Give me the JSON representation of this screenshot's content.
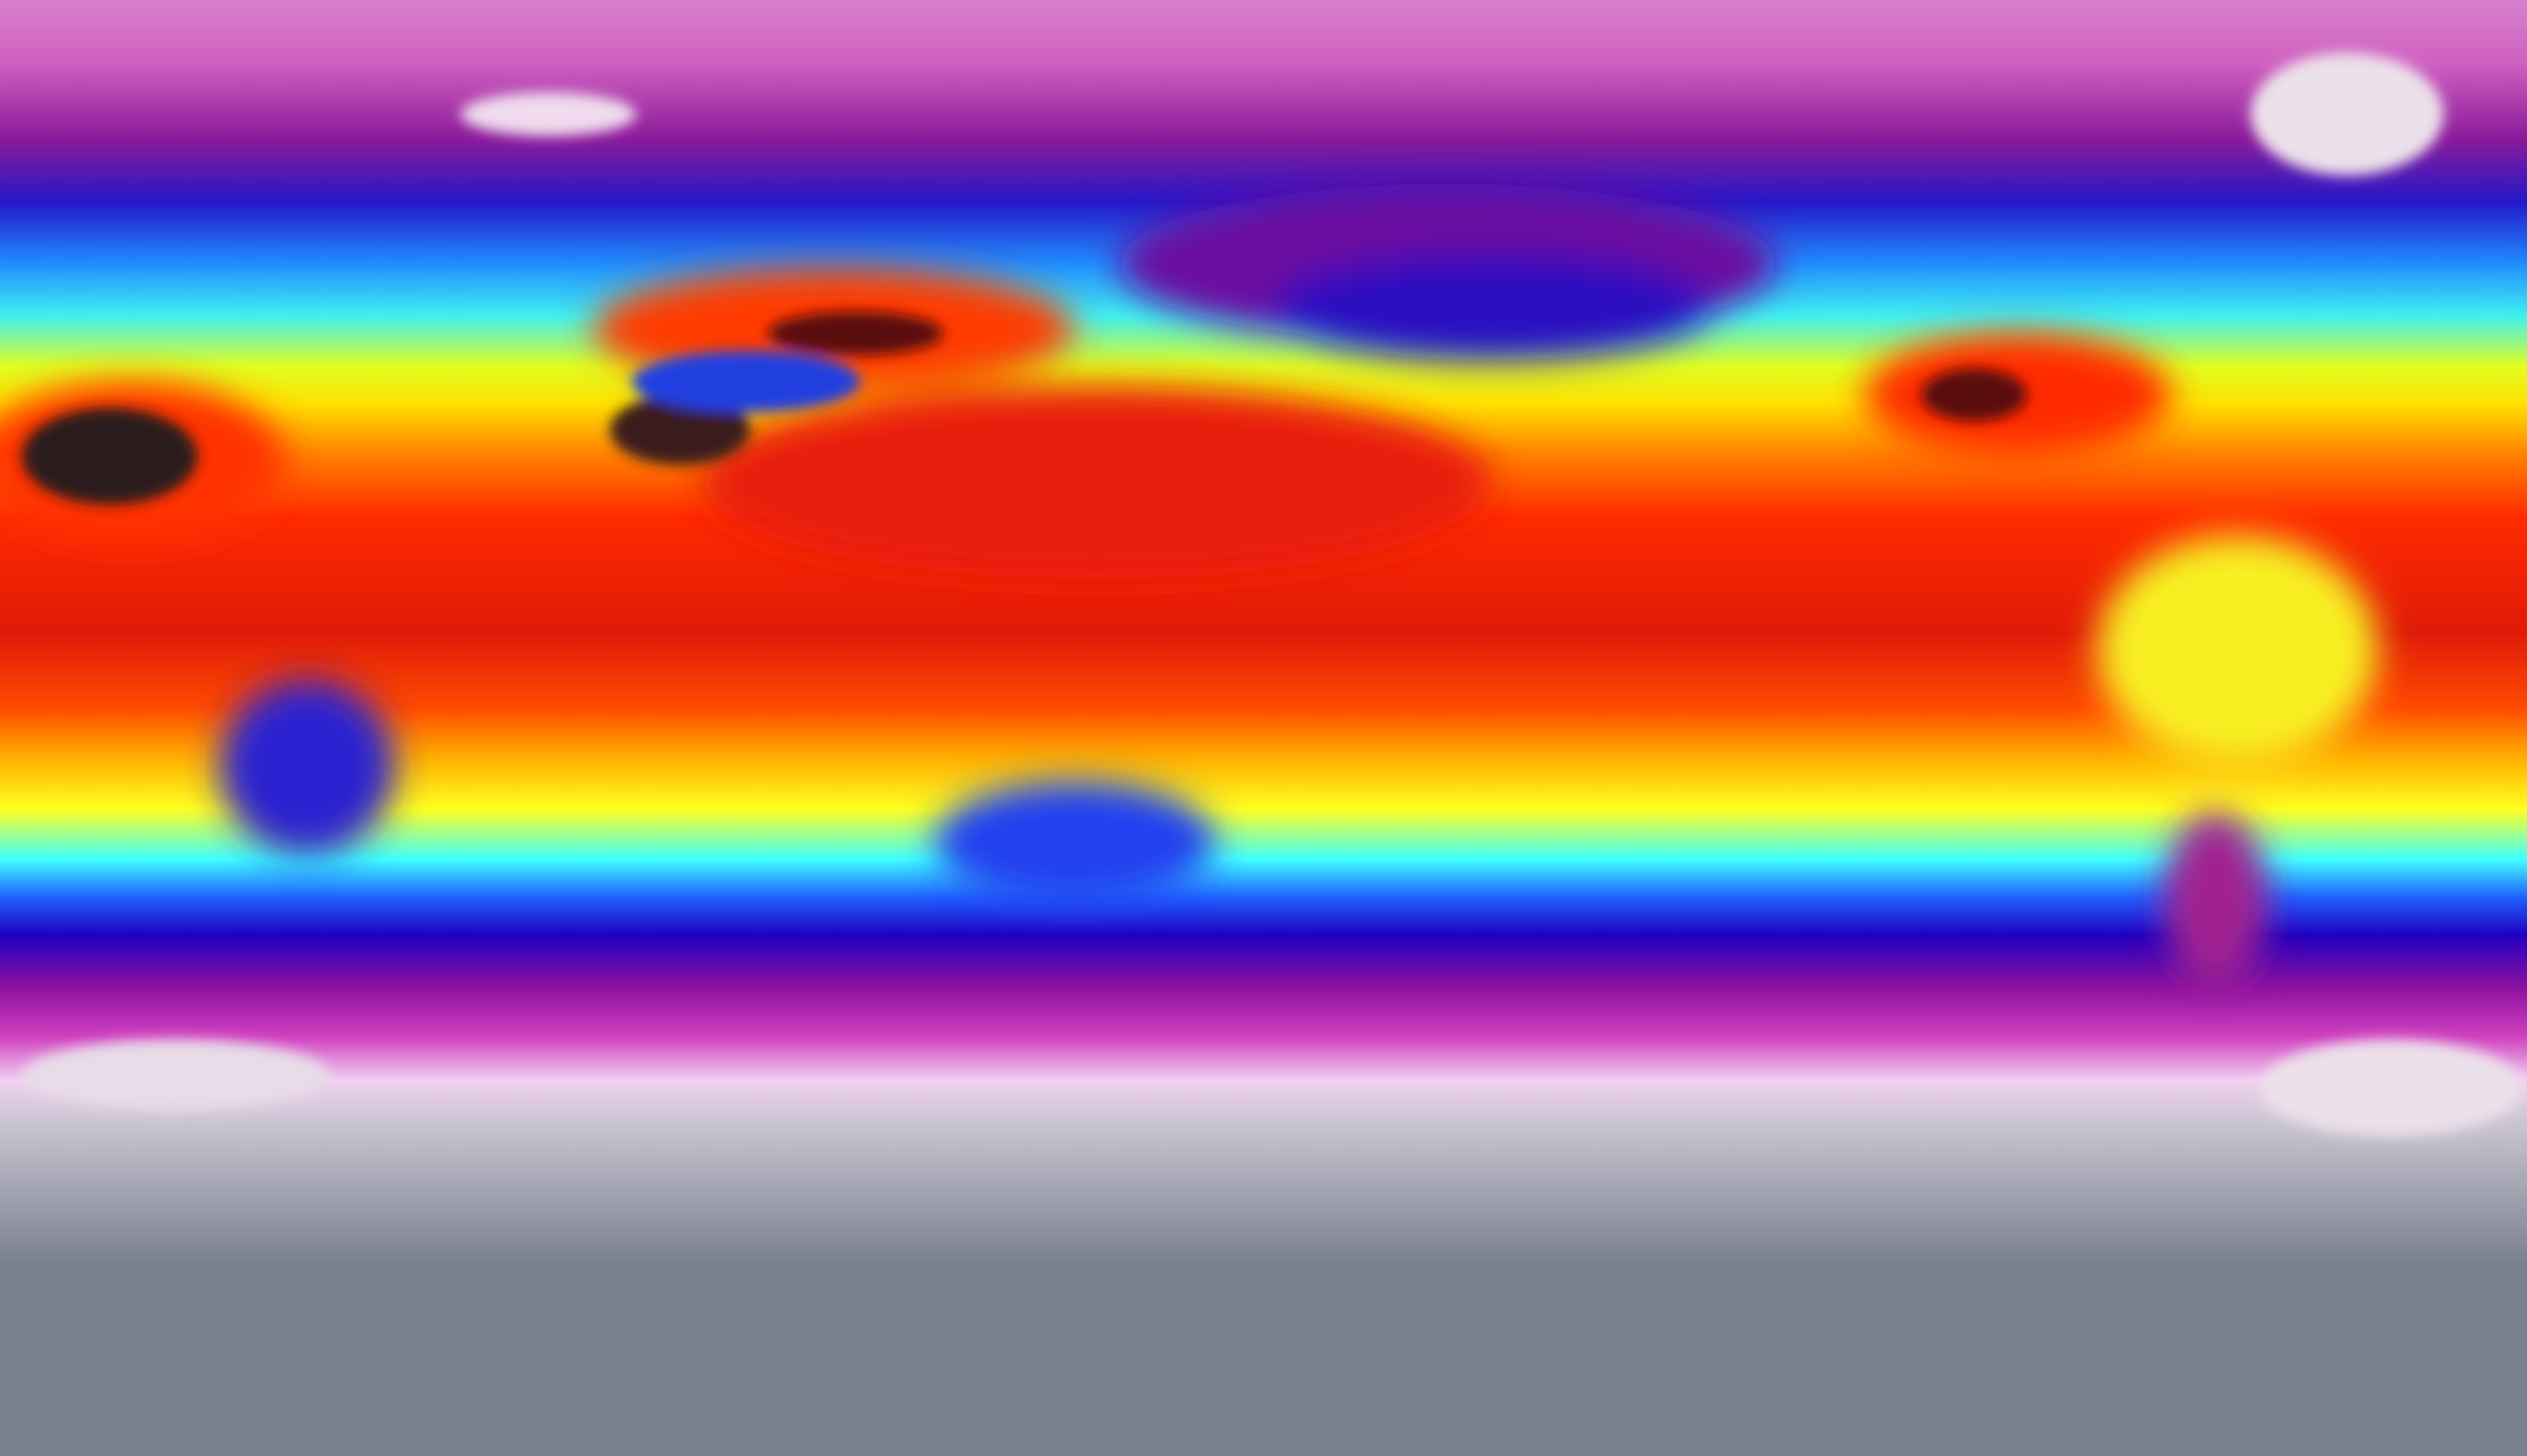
{
  "map": {
    "colors": {
      "polar_north": "#d67ccc",
      "subpolar": "#8a1a9a",
      "cold": "#2020d0",
      "cool": "#20c0ff",
      "mild": "#ffff20",
      "warm": "#ff7a00",
      "hot": "#e81a0a",
      "hottest": "#2a1a1a",
      "ice": "#f0dcee",
      "antarctic": "#7a8090"
    }
  }
}
